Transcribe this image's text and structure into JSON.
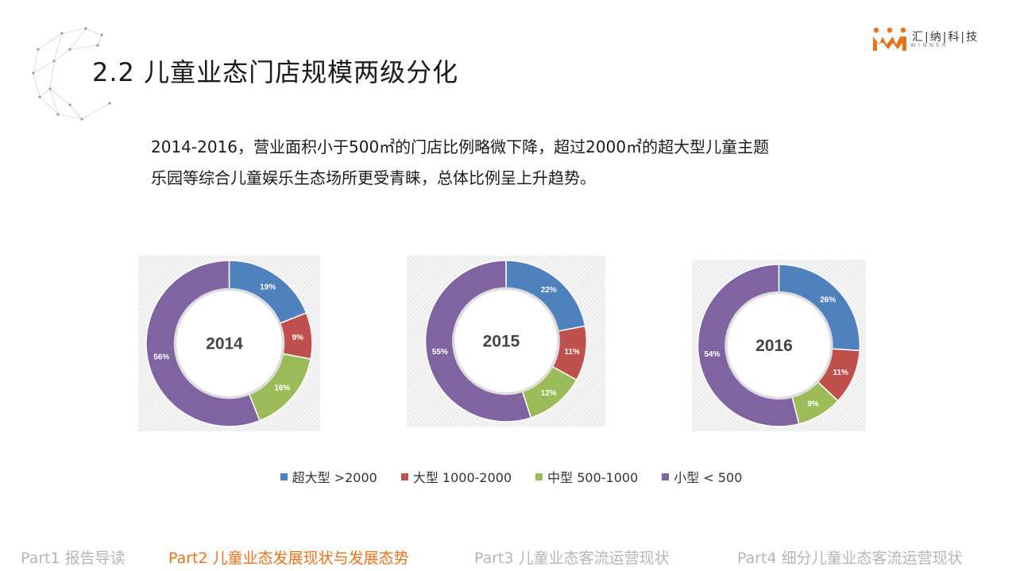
{
  "title": "2.2 儿童业态门店规模两级分化",
  "logo": {
    "name": "汇|纳|科|技",
    "sub": "WINNER"
  },
  "body_lines": [
    "2014-2016，营业面积小于500㎡的门店比例略微下降，超过2000㎡的超大型儿童主题",
    "乐园等综合儿童娱乐生态场所更受青睐，总体比例呈上升趋势。"
  ],
  "legend": [
    {
      "label": "超大型 >2000",
      "color": "#4f81bd"
    },
    {
      "label": "大型  1000-2000",
      "color": "#c0504d"
    },
    {
      "label": "中型 500-1000",
      "color": "#9bbb59"
    },
    {
      "label": "小型 < 500",
      "color": "#8064a2"
    }
  ],
  "chart_data": [
    {
      "type": "pie",
      "title": "2014",
      "categories": [
        "超大型 >2000",
        "大型  1000-2000",
        "中型 500-1000",
        "小型 < 500"
      ],
      "values": [
        19,
        9,
        16,
        56
      ],
      "labels": [
        "19%",
        "9%",
        "16%",
        "56%"
      ]
    },
    {
      "type": "pie",
      "title": "2015",
      "categories": [
        "超大型 >2000",
        "大型  1000-2000",
        "中型 500-1000",
        "小型 < 500"
      ],
      "values": [
        22,
        11,
        12,
        55
      ],
      "labels": [
        "22%",
        "11%",
        "12%",
        "55%"
      ]
    },
    {
      "type": "pie",
      "title": "2016",
      "categories": [
        "超大型 >2000",
        "大型  1000-2000",
        "中型 500-1000",
        "小型 < 500"
      ],
      "values": [
        26,
        11,
        9,
        54
      ],
      "labels": [
        "26%",
        "11%",
        "9%",
        "54%"
      ]
    }
  ],
  "footer": [
    {
      "label": "Part1 报告导读",
      "active": false
    },
    {
      "label": "Part2 儿童业态发展现状与发展态势",
      "active": true
    },
    {
      "label": "Part3 儿童业态客流运营现状",
      "active": false
    },
    {
      "label": "Part4 细分儿童业态客流运营现状",
      "active": false
    }
  ]
}
